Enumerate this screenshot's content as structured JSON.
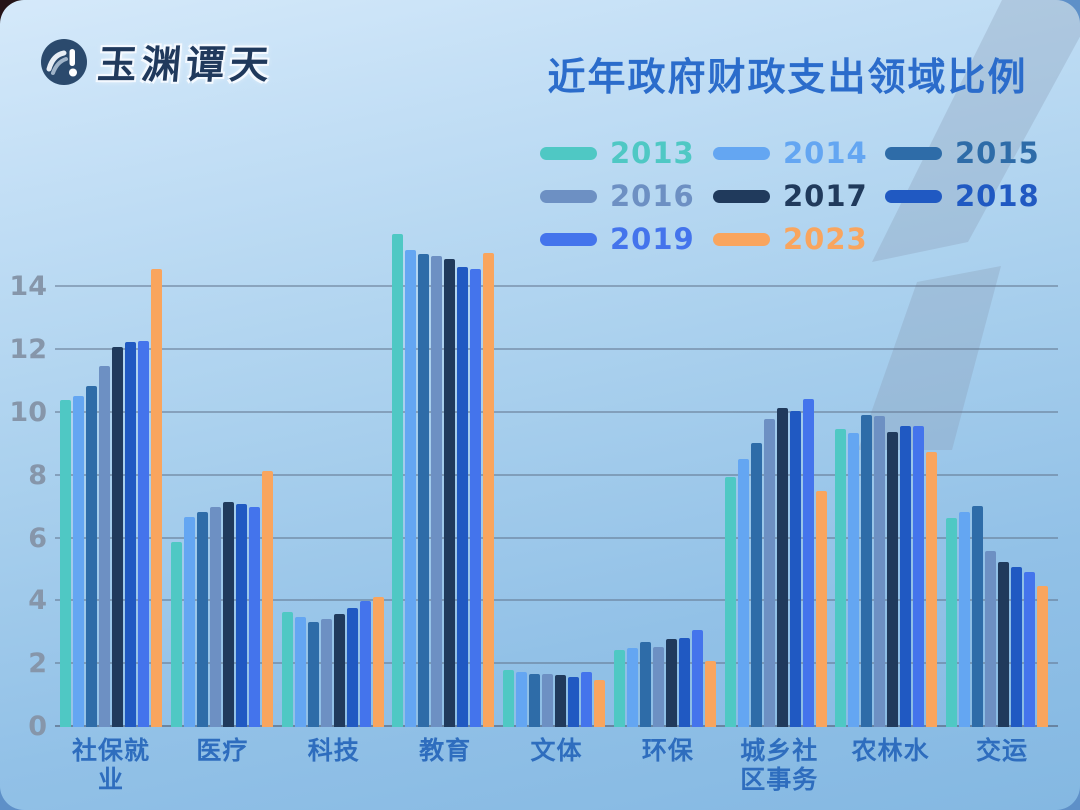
{
  "brand": {
    "name": "玉渊谭天",
    "icon": "wave-logo-icon"
  },
  "title": "近年政府财政支出领域比例",
  "colors": {
    "title_text": "#2b6ccb",
    "category_label_text": "#2e6dbe",
    "tick_label_text": "#8696aa",
    "gridline": "#62758d",
    "panel_background_top": "#d5e9fa",
    "panel_background_bottom": "#84b8e2",
    "backdrop": "#5e90c8"
  },
  "chart_data": {
    "type": "bar",
    "title": "近年政府财政支出领域比例",
    "categories": [
      "社保就业",
      "医疗",
      "科技",
      "教育",
      "文体",
      "环保",
      "城乡社区事务",
      "农林水",
      "交运"
    ],
    "series": [
      {
        "name": "2013",
        "color": "#4fc8c4",
        "values": [
          10.4,
          5.9,
          3.65,
          15.7,
          1.8,
          2.45,
          7.95,
          9.5,
          6.65
        ]
      },
      {
        "name": "2014",
        "color": "#64a6f2",
        "values": [
          10.55,
          6.7,
          3.5,
          15.2,
          1.75,
          2.5,
          8.55,
          9.35,
          6.85
        ]
      },
      {
        "name": "2015",
        "color": "#2e6ca8",
        "values": [
          10.85,
          6.85,
          3.35,
          15.05,
          1.7,
          2.7,
          9.05,
          9.95,
          7.05
        ]
      },
      {
        "name": "2016",
        "color": "#6d90c3",
        "values": [
          11.5,
          7.0,
          3.45,
          15.0,
          1.7,
          2.55,
          9.8,
          9.9,
          5.6
        ]
      },
      {
        "name": "2017",
        "color": "#203a5c",
        "values": [
          12.1,
          7.15,
          3.6,
          14.9,
          1.65,
          2.8,
          10.15,
          9.4,
          5.25
        ]
      },
      {
        "name": "2018",
        "color": "#2059c2",
        "values": [
          12.25,
          7.1,
          3.8,
          14.65,
          1.6,
          2.85,
          10.05,
          9.6,
          5.1
        ]
      },
      {
        "name": "2019",
        "color": "#4474ec",
        "values": [
          12.3,
          7.0,
          4.0,
          14.6,
          1.75,
          3.1,
          10.45,
          9.6,
          4.95
        ]
      },
      {
        "name": "2023",
        "color": "#f9a55e",
        "values": [
          14.6,
          8.15,
          4.15,
          15.1,
          1.5,
          2.1,
          7.5,
          8.75,
          4.5
        ]
      }
    ],
    "yticks": [
      0,
      2,
      4,
      6,
      8,
      10,
      12,
      14
    ],
    "ylim": [
      0,
      16.2
    ],
    "xlabel": "",
    "ylabel": "",
    "grid": true,
    "legend_position": "top-right",
    "legend_columns": 3
  }
}
